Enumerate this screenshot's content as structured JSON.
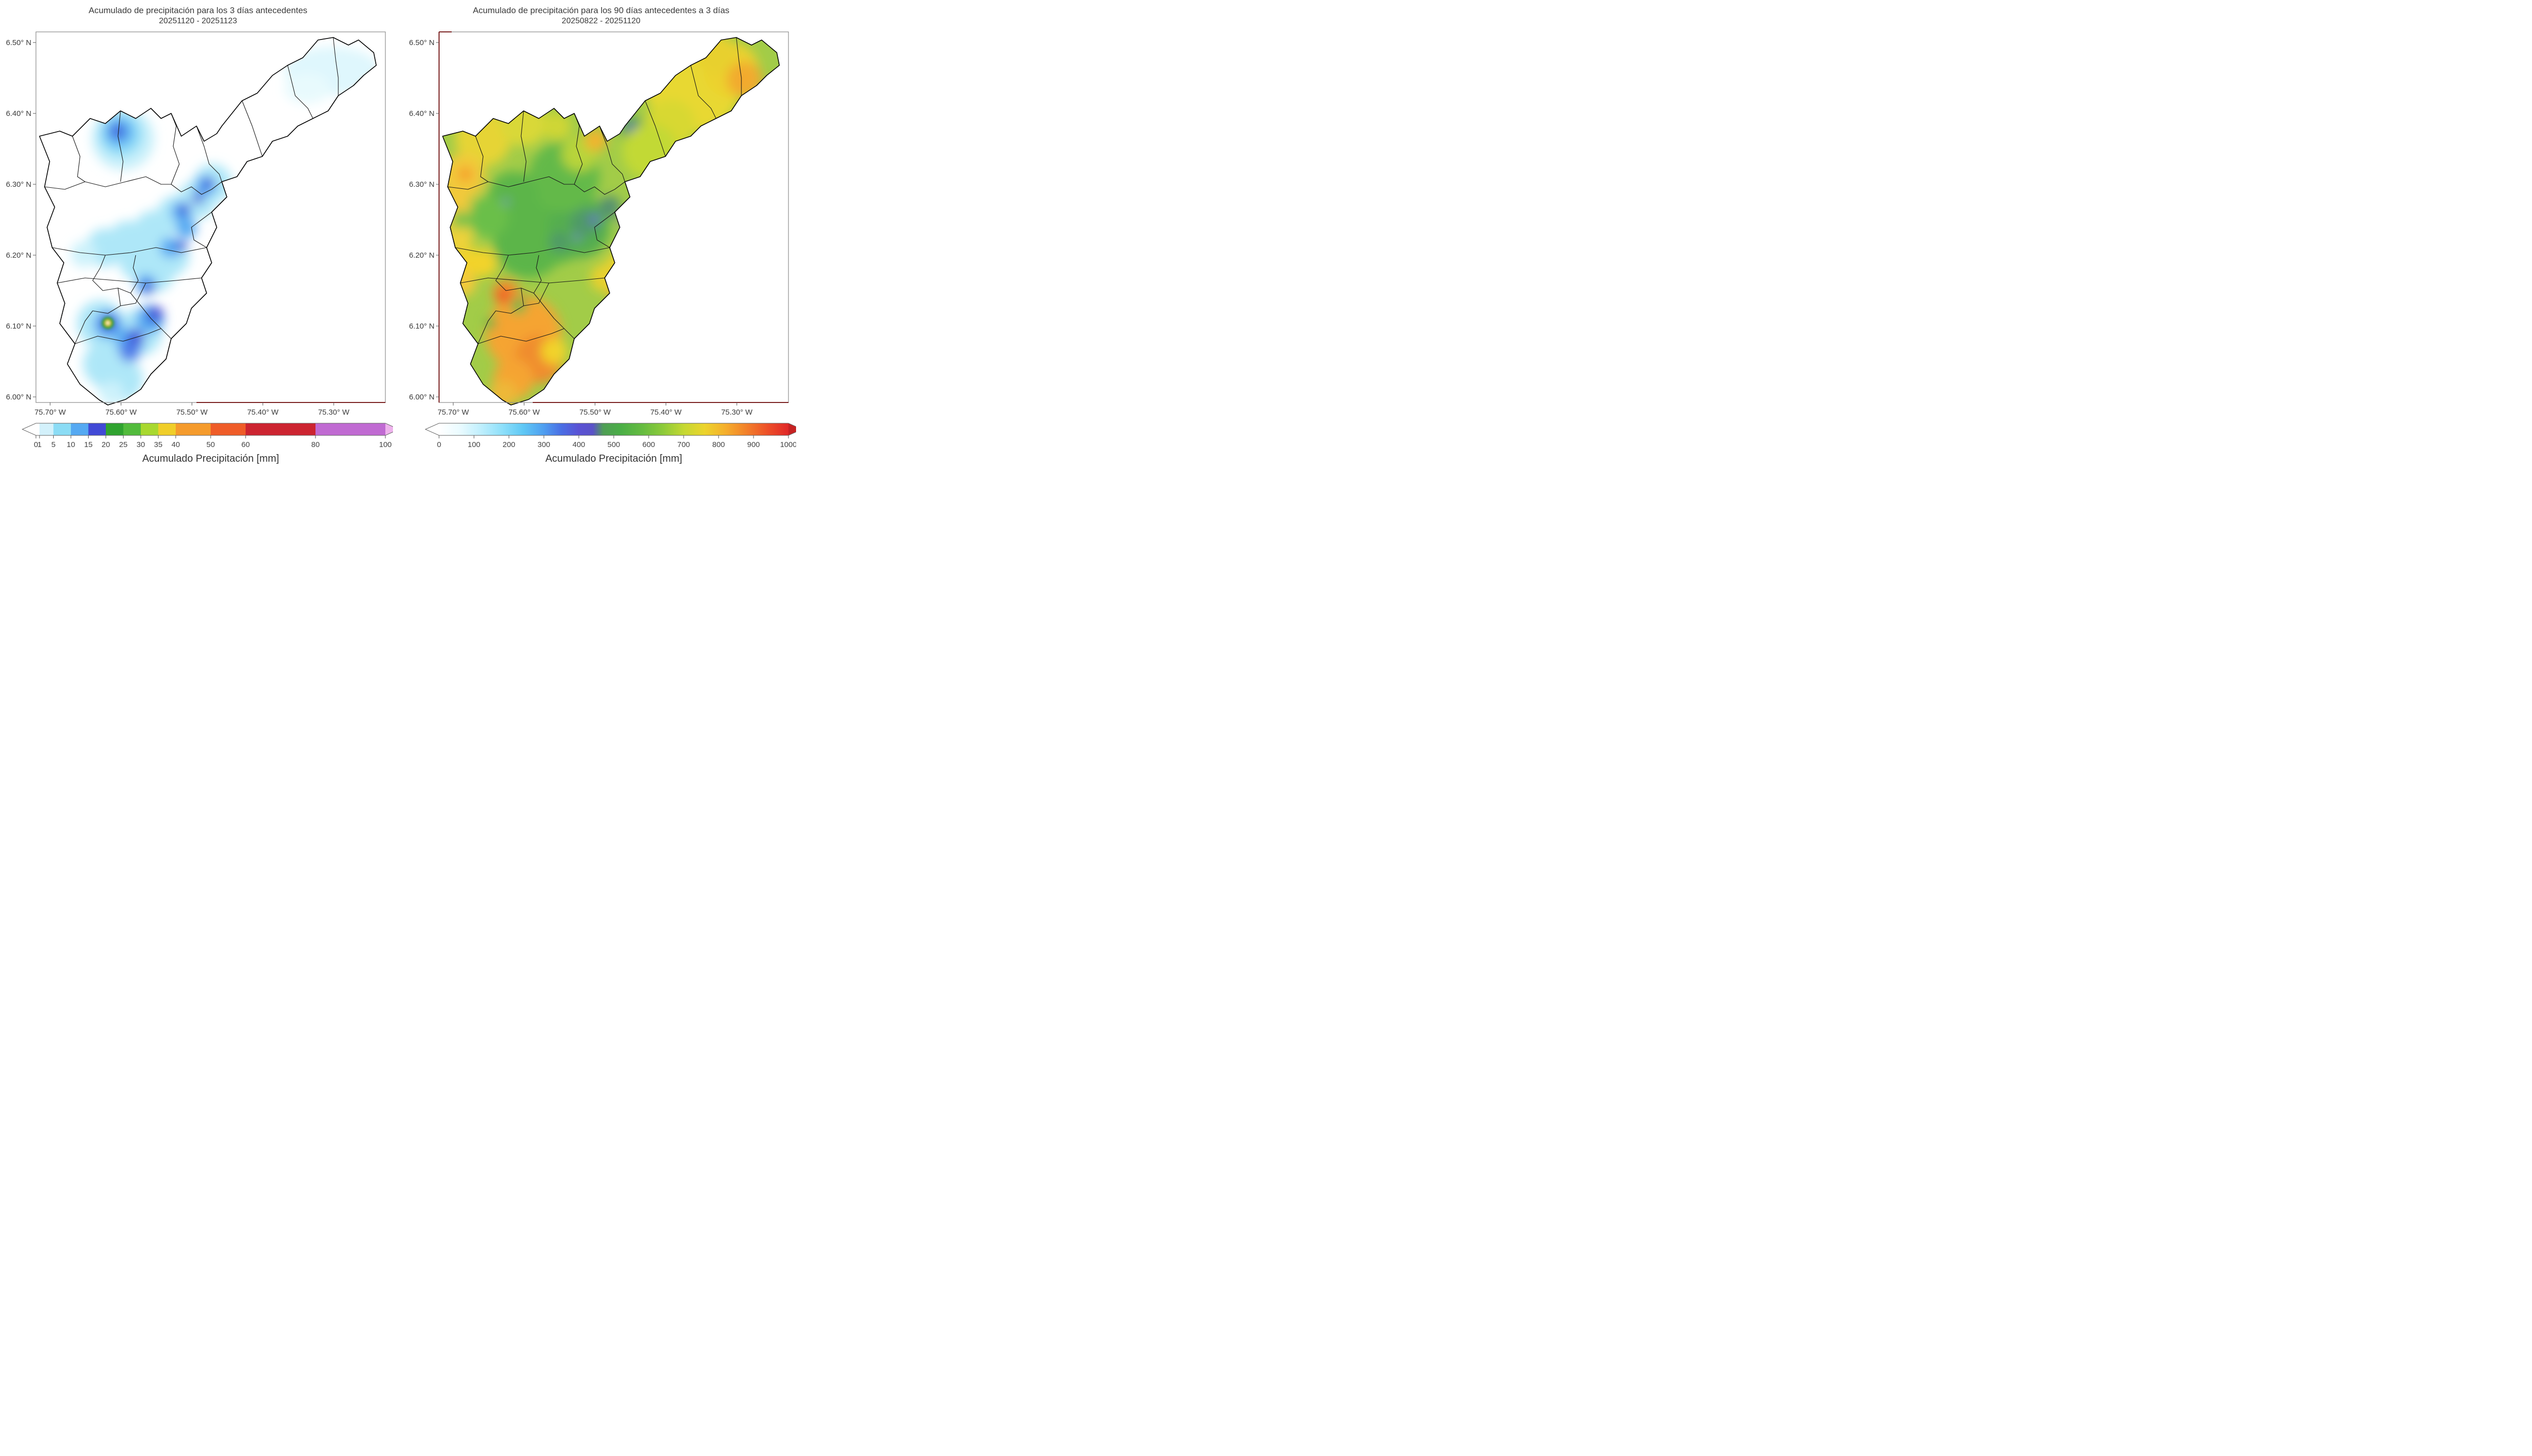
{
  "axes": {
    "lat_ticks": [
      "6.50° N",
      "6.40° N",
      "6.30° N",
      "6.20° N",
      "6.10° N",
      "6.00° N"
    ],
    "lon_ticks": [
      "75.70° W",
      "75.60° W",
      "75.50° W",
      "75.40° W",
      "75.30° W"
    ]
  },
  "colorbars": [
    {
      "gradient_id": "cb0-grad",
      "vmin": 0,
      "vmax": 100,
      "label": "Acumulado Precipitación [mm]",
      "ticks": [
        "0",
        "1",
        "5",
        "10",
        "15",
        "20",
        "25",
        "30",
        "35",
        "40",
        "50",
        "60",
        "80",
        "100"
      ],
      "arrow_left": "#ffffff",
      "arrow_right": "#eeb2ec",
      "stops": [
        {
          "at": 0,
          "color": "#ffffff"
        },
        {
          "at": 1,
          "color": "#ffffff"
        },
        {
          "at": 1,
          "color": "#d3f1fb"
        },
        {
          "at": 5,
          "color": "#d3f1fb"
        },
        {
          "at": 5,
          "color": "#8bdcf5"
        },
        {
          "at": 10,
          "color": "#8bdcf5"
        },
        {
          "at": 10,
          "color": "#55a9f2"
        },
        {
          "at": 15,
          "color": "#55a9f2"
        },
        {
          "at": 15,
          "color": "#4149d6"
        },
        {
          "at": 20,
          "color": "#4149d6"
        },
        {
          "at": 20,
          "color": "#2fa32f"
        },
        {
          "at": 25,
          "color": "#2fa32f"
        },
        {
          "at": 25,
          "color": "#52bb3c"
        },
        {
          "at": 30,
          "color": "#52bb3c"
        },
        {
          "at": 30,
          "color": "#a8d82f"
        },
        {
          "at": 35,
          "color": "#a8d82f"
        },
        {
          "at": 35,
          "color": "#f0ce29"
        },
        {
          "at": 40,
          "color": "#f0ce29"
        },
        {
          "at": 40,
          "color": "#f59b2c"
        },
        {
          "at": 50,
          "color": "#f59b2c"
        },
        {
          "at": 50,
          "color": "#ef5c28"
        },
        {
          "at": 60,
          "color": "#ef5c28"
        },
        {
          "at": 60,
          "color": "#cc2430"
        },
        {
          "at": 80,
          "color": "#cc2430"
        },
        {
          "at": 80,
          "color": "#c06ad2"
        },
        {
          "at": 100,
          "color": "#c06ad2"
        }
      ]
    },
    {
      "gradient_id": "cb1-grad",
      "vmin": 0,
      "vmax": 1000,
      "label": "Acumulado Precipitación [mm]",
      "ticks": [
        "0",
        "100",
        "200",
        "300",
        "400",
        "500",
        "600",
        "700",
        "800",
        "900",
        "1000"
      ],
      "arrow_left": "#ffffff",
      "arrow_right": "#c62222",
      "stops": [
        {
          "at": 0,
          "color": "#ffffff"
        },
        {
          "at": 60,
          "color": "#eafbff"
        },
        {
          "at": 120,
          "color": "#bfeffd"
        },
        {
          "at": 180,
          "color": "#8fe0fa"
        },
        {
          "at": 240,
          "color": "#5fc8f5"
        },
        {
          "at": 300,
          "color": "#4f9ef0"
        },
        {
          "at": 350,
          "color": "#4a6ee4"
        },
        {
          "at": 400,
          "color": "#5a52d4"
        },
        {
          "at": 440,
          "color": "#5a52c8"
        },
        {
          "at": 470,
          "color": "#4f9e55"
        },
        {
          "at": 520,
          "color": "#4aae46"
        },
        {
          "at": 580,
          "color": "#64bb40"
        },
        {
          "at": 640,
          "color": "#8cca3a"
        },
        {
          "at": 700,
          "color": "#c4d832"
        },
        {
          "at": 760,
          "color": "#ecd42c"
        },
        {
          "at": 820,
          "color": "#f5ae2c"
        },
        {
          "at": 880,
          "color": "#f2802a"
        },
        {
          "at": 940,
          "color": "#ed4f28"
        },
        {
          "at": 1000,
          "color": "#e02828"
        }
      ]
    }
  ],
  "chart_data": [
    {
      "type": "heatmap",
      "subtype": "filled_contour_precipitation_map",
      "title": "Acumulado de precipitación para los 3 días antecedentes",
      "subtitle": "20251120 - 20251123",
      "x_tick_labels": [
        "75.70° W",
        "75.60° W",
        "75.50° W",
        "75.40° W",
        "75.30° W"
      ],
      "y_tick_labels": [
        "6.50° N",
        "6.40° N",
        "6.30° N",
        "6.20° N",
        "6.10° N",
        "6.00° N"
      ],
      "xlim_deg_west": [
        75.72,
        75.23
      ],
      "ylim_deg_north": [
        5.99,
        6.51
      ],
      "colorbar_label": "Acumulado Precipitación [mm]",
      "units": "mm",
      "contour_levels_mm": [
        0,
        1,
        5,
        10,
        15,
        20,
        25,
        30,
        35,
        40,
        50,
        60,
        80,
        100
      ],
      "colorbar_extend": "both",
      "observations": [
        {
          "area": "celda noroeste (6.37° N, 75.59° W)",
          "value_mm": "15-20"
        },
        {
          "area": "banda diagonal central (6.17-6.28° N, 75.62-75.46° W)",
          "value_mm": "5-25"
        },
        {
          "area": "máximo sur (6.09° N, 75.615° W)",
          "value_mm": "35-40"
        },
        {
          "area": "zona sur (6.00-6.15° N, 75.66-75.54° W)",
          "value_mm": "5-25"
        },
        {
          "area": "lóbulo noreste (6.42-6.49° N, 75.34-75.25° W)",
          "value_mm": "1-5"
        },
        {
          "area": "resto de la cuenca",
          "value_mm": "0"
        }
      ]
    },
    {
      "type": "heatmap",
      "subtype": "filled_contour_precipitation_map",
      "title": "Acumulado de precipitación para los 90 días antecedentes a 3 días",
      "subtitle": "20250822 - 20251120",
      "x_tick_labels": [
        "75.70° W",
        "75.60° W",
        "75.50° W",
        "75.40° W",
        "75.30° W"
      ],
      "y_tick_labels": [
        "6.50° N",
        "6.40° N",
        "6.30° N",
        "6.20° N",
        "6.10° N",
        "6.00° N"
      ],
      "xlim_deg_west": [
        75.72,
        75.23
      ],
      "ylim_deg_north": [
        5.99,
        6.51
      ],
      "colorbar_label": "Acumulado Precipitación [mm]",
      "units": "mm",
      "contour_levels_mm": [
        0,
        100,
        200,
        300,
        400,
        500,
        600,
        700,
        800,
        900,
        1000
      ],
      "colorbar_extend": "both",
      "observations": [
        {
          "area": "zona central verde (6.20-6.32° N, 75.62-75.46° W)",
          "value_mm": "450-600"
        },
        {
          "area": "mínimos locales violeta (centro de la cuenca)",
          "value_mm": "350-420"
        },
        {
          "area": "zona sur naranja (6.00-6.12° N, 75.64-75.55° W)",
          "value_mm": "750-900"
        },
        {
          "area": "punto rojo (6.13° N, 75.63° W)",
          "value_mm": "900-950"
        },
        {
          "area": "lóbulo noreste amarillo (6.40-6.50° N)",
          "value_mm": "650-780"
        },
        {
          "area": "borde occidental amarillo-naranja",
          "value_mm": "700-800"
        }
      ]
    }
  ]
}
